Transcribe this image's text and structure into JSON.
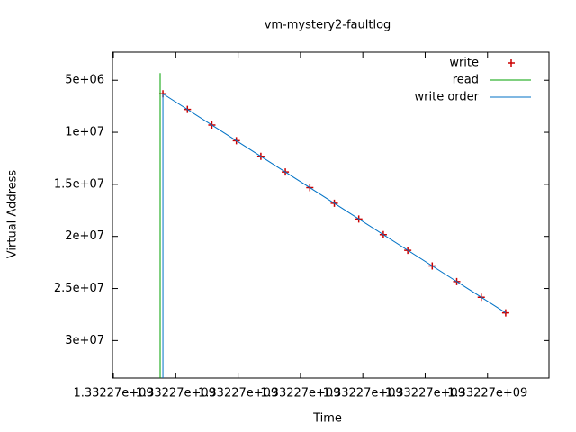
{
  "chart_data": {
    "type": "scatter",
    "title": "vm-mystery2-faultlog",
    "x_label": "Time",
    "y_label": "Virtual Address",
    "xlim": [
      1332265985,
      1332272985
    ],
    "xticks": [
      {
        "value": 1332266000,
        "label": "1.33227e+09"
      },
      {
        "value": 1332267000,
        "label": "1.33227e+09"
      },
      {
        "value": 1332268000,
        "label": "1.33227e+09"
      },
      {
        "value": 1332269000,
        "label": "1.33227e+09"
      },
      {
        "value": 1332270000,
        "label": "1.33227e+09"
      },
      {
        "value": 1332271000,
        "label": "1.33227e+09"
      },
      {
        "value": 1332272000,
        "label": "1.33227e+09"
      }
    ],
    "ylim": [
      33600000,
      2300000
    ],
    "y_reverse": true,
    "yticks": [
      {
        "value": 5000000,
        "label": "5e+06"
      },
      {
        "value": 10000000,
        "label": "1e+07"
      },
      {
        "value": 15000000,
        "label": "1.5e+07"
      },
      {
        "value": 20000000,
        "label": "2e+07"
      },
      {
        "value": 25000000,
        "label": "2.5e+07"
      },
      {
        "value": 30000000,
        "label": "3e+07"
      }
    ],
    "legend": "top-right",
    "series": [
      {
        "name": "write",
        "color": "#cc0000",
        "style": "points",
        "x": [
          1332266794,
          1332267187,
          1332267579,
          1332267972,
          1332268365,
          1332268757,
          1332269150,
          1332269543,
          1332269935,
          1332270328,
          1332270721,
          1332271113,
          1332271506,
          1332271899,
          1332272291
        ],
        "values": [
          6300000,
          7803000,
          9306000,
          10809000,
          12311000,
          13814000,
          15317000,
          16820000,
          18323000,
          19826000,
          21329000,
          22831000,
          24334000,
          25837000,
          27340000
        ]
      },
      {
        "name": "read",
        "color": "#00a000",
        "style": "lines",
        "x": [
          1332266750,
          1332266750
        ],
        "values": [
          4310000,
          34000000
        ]
      },
      {
        "name": "write order",
        "color": "#0072c6",
        "style": "lines",
        "x": [
          1332266794,
          1332266794,
          1332272291
        ],
        "values": [
          34000000,
          6300000,
          27340000
        ]
      }
    ]
  }
}
